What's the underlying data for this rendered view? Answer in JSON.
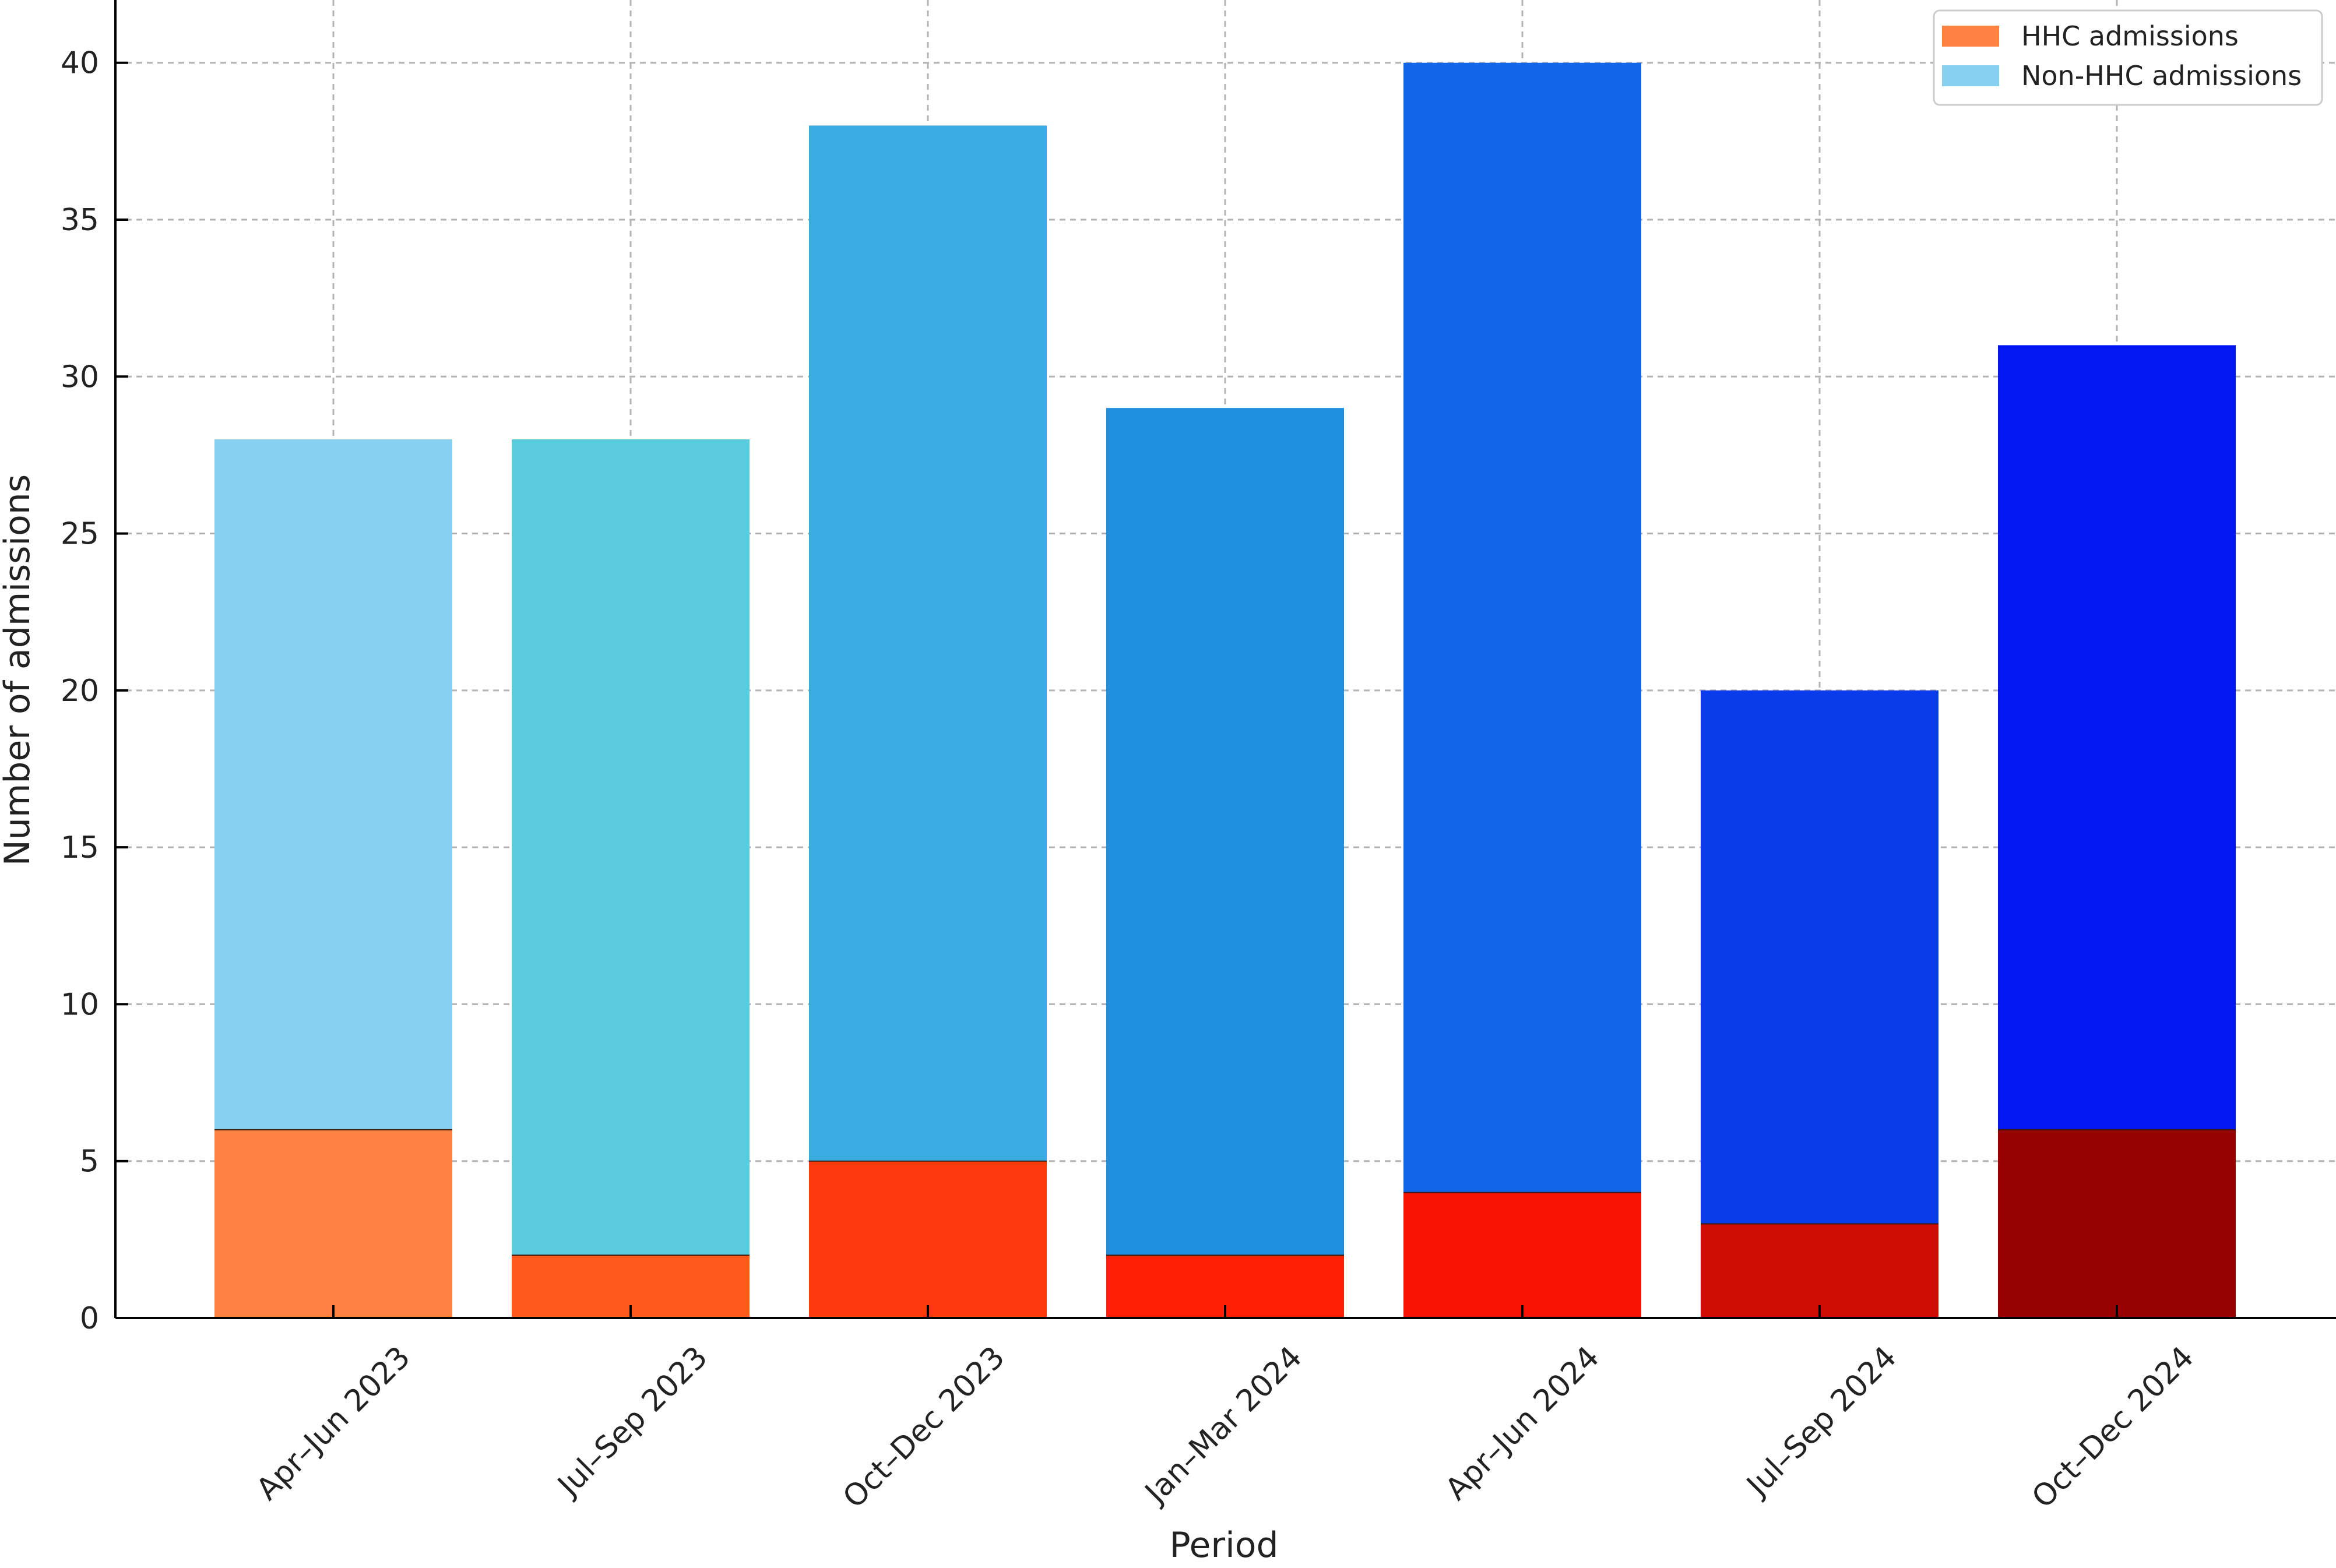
{
  "chart_data": {
    "type": "bar",
    "stacked": true,
    "categories": [
      "Apr–Jun 2023",
      "Jul–Sep 2023",
      "Oct–Dec 2023",
      "Jan–Mar 2024",
      "Apr–Jun 2024",
      "Jul–Sep 2024",
      "Oct–Dec 2024"
    ],
    "series": [
      {
        "name": "HHC admissions",
        "values": [
          6,
          2,
          5,
          2,
          4,
          3,
          6
        ],
        "legend_color": "#fe8241",
        "colors": [
          "#fe8241",
          "#ff5a1b",
          "#ff390b",
          "#ff1f04",
          "#f81404",
          "#d00d02",
          "#960200"
        ]
      },
      {
        "name": "Non-HHC admissions",
        "values": [
          22,
          26,
          33,
          27,
          36,
          17,
          25
        ],
        "legend_color": "#87cfef",
        "colors": [
          "#87cfef",
          "#5bcadd",
          "#3aace2",
          "#1f8fe0",
          "#1265e8",
          "#0a3ce9",
          "#0318f0"
        ]
      }
    ],
    "xlabel": "Period",
    "ylabel": "Number of admissions",
    "ylim": [
      0,
      42
    ],
    "yticks": [
      0,
      5,
      10,
      15,
      20,
      25,
      30,
      35,
      40
    ],
    "grid": true,
    "legend_position": "top-right"
  }
}
